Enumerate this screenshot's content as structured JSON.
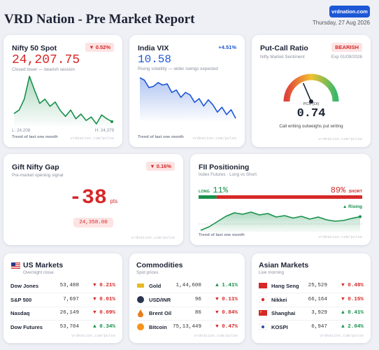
{
  "header": {
    "title": "VRD Nation - Pre Market Report",
    "link": "vrdnation.com",
    "date": "Thursday, 27 Aug 2026"
  },
  "nifty": {
    "title": "Nifty 50 Spot",
    "change": "▼ 0.52%",
    "value": "24,207.75",
    "note": "Closed lower — bearish session",
    "trend": [
      24250,
      24262,
      24300,
      24379,
      24330,
      24285,
      24300,
      24275,
      24290,
      24260,
      24240,
      24262,
      24232,
      24248,
      24226,
      24238,
      24214,
      24245,
      24232,
      24222
    ],
    "low": "L: 24,208",
    "high": "H: 24,379",
    "caption": "Trend of last one month",
    "source": "vrdnation.com/pulse"
  },
  "vix": {
    "title": "India VIX",
    "change": "+4.51%",
    "value": "10.58",
    "note": "Rising volatility — wider swings expected",
    "trend": [
      12.2,
      12.1,
      11.8,
      11.85,
      12.0,
      11.9,
      11.95,
      11.6,
      11.7,
      11.4,
      11.6,
      11.5,
      11.2,
      11.35,
      11.05,
      11.3,
      11.1,
      10.8,
      11.0,
      10.7,
      10.9,
      10.55
    ],
    "caption": "Trend of last one month",
    "source": "vrdnation.com/pulse"
  },
  "pcr": {
    "title": "Put-Call Ratio",
    "badge": "BEARISH",
    "subtitle": "Nifty Market Sentiment",
    "expiry": "Exp 01/09/2026",
    "gauge_range": [
      0,
      2
    ],
    "label": "PCR (OI)",
    "value": 0.74,
    "note": "Call writing outweighs put writing",
    "source": "vrdnation.com/pulse"
  },
  "gift": {
    "title": "Gift Nifty Gap",
    "change": "▼ 0.16%",
    "subtitle": "Pre-market opening signal",
    "gap": -38,
    "unit": "pts",
    "price": "24,358.00",
    "source": "vrdnation.com/pulse"
  },
  "fii": {
    "title": "FII Positioning",
    "subtitle": "Index Futures · Long vs Short",
    "long_label": "LONG",
    "long": {
      "value": 11,
      "label": "11%"
    },
    "short": {
      "value": 89,
      "label": "89%"
    },
    "short_label": "SHORT",
    "status": "▲ Rising",
    "trend": [
      8,
      9,
      10.5,
      12,
      13,
      12.6,
      13.2,
      12.4,
      12.8,
      11.8,
      12.2,
      11.5,
      12,
      11.2,
      11.8,
      11,
      10.6,
      10.8,
      11.4,
      11.9
    ],
    "caption": "Trend of last one month",
    "source": "vrdnation.com/pulse"
  },
  "us": {
    "title": "US Markets",
    "subtitle": "Overnight close",
    "rows": [
      [
        "Dow Jones",
        "53,488",
        "▼ 0.21%"
      ],
      [
        "S&P 500",
        "7,697",
        "▼ 0.01%"
      ],
      [
        "Nasdaq",
        "26,149",
        "▼ 0.09%"
      ],
      [
        "Dow Futures",
        "53,704",
        "▲ 0.34%"
      ]
    ],
    "source": "vrdnation.com/pulse"
  },
  "commodities": {
    "title": "Commodities",
    "subtitle": "Spot prices",
    "rows": [
      [
        "Gold",
        "1,44,600",
        "▲ 1.41%"
      ],
      [
        "USD/INR",
        "96",
        "▼ 0.11%"
      ],
      [
        "Brent Oil",
        "86",
        "▼ 0.84%"
      ],
      [
        "Bitcoin",
        "75,13,449",
        "▼ 0.47%"
      ]
    ],
    "source": "vrdnation.com/pulse"
  },
  "asia": {
    "title": "Asian Markets",
    "subtitle": "Live morning",
    "rows": [
      [
        "Hang Seng",
        "25,529",
        "▼ 0.48%"
      ],
      [
        "Nikkei",
        "66,164",
        "▼ 0.15%"
      ],
      [
        "Shanghai",
        "3,929",
        "▲ 0.41%"
      ],
      [
        "KOSPI",
        "6,947",
        "▲ 2.04%"
      ]
    ],
    "source": "vrdnation.com/pulse"
  }
}
